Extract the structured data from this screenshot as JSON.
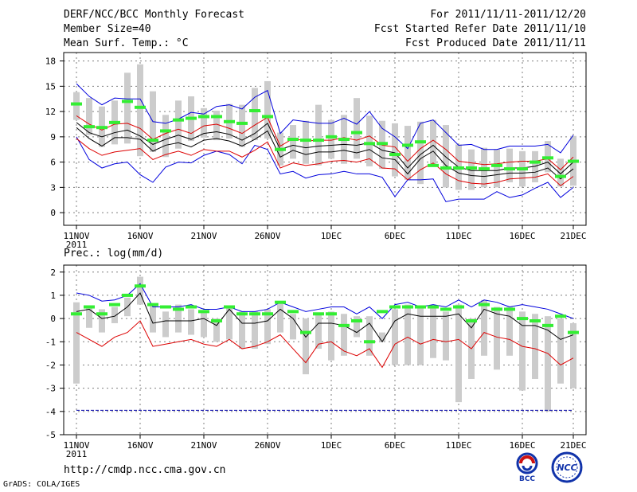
{
  "header": {
    "title": "DERF/NCC/BCC Monthly Forecast",
    "member_size": "Member Size=40",
    "variable_top": "Mean Surf. Temp.: °C",
    "period": "For 2011/11/11-2011/12/20",
    "start_date": "Fcst Started Refer Date 2011/11/10",
    "produced_date": "Fcst Produced Date 2011/11/11"
  },
  "footer": {
    "url": "http://cmdp.ncc.cma.gov.cn",
    "grads": "GrADS: COLA/IGES",
    "logo_bcc": "BCC",
    "logo_ncc": "NCC"
  },
  "colors": {
    "frame": "#000000",
    "grid": "#7f7f7f",
    "box": "#cccccc",
    "green": "#33ee33",
    "max_line": "#0000dd",
    "min_line": "#dd0000",
    "mean_line": "#000000",
    "ref_line": "#0000aa"
  },
  "chart_data": [
    {
      "type": "line",
      "title": "Mean Surf. Temp.: °C",
      "xlabel": "",
      "ylabel": "",
      "ylim": [
        -1.5,
        19
      ],
      "yticks": [
        0,
        3,
        6,
        9,
        12,
        15,
        18
      ],
      "grid": true,
      "day_count": 40,
      "x_ticks": [
        {
          "day": 0,
          "label": "11NOV",
          "sub": "2011"
        },
        {
          "day": 5,
          "label": "16NOV"
        },
        {
          "day": 10,
          "label": "21NOV"
        },
        {
          "day": 15,
          "label": "26NOV"
        },
        {
          "day": 20,
          "label": "1DEC"
        },
        {
          "day": 25,
          "label": "6DEC"
        },
        {
          "day": 30,
          "label": "11DEC"
        },
        {
          "day": 35,
          "label": "16DEC"
        },
        {
          "day": 39,
          "label": "21DEC"
        }
      ],
      "series": [
        {
          "name": "max",
          "values": [
            15.3,
            13.8,
            12.8,
            13.6,
            13.5,
            13.5,
            10.8,
            10.6,
            11.1,
            11.9,
            11.7,
            12.6,
            12.8,
            12.3,
            13.7,
            14.5,
            9.4,
            11.0,
            10.8,
            10.6,
            10.6,
            11.2,
            10.5,
            12.0,
            10.0,
            9.0,
            7.6,
            10.6,
            11.0,
            9.5,
            8.0,
            8.1,
            7.5,
            7.5,
            7.9,
            7.9,
            7.9,
            8.1,
            7.1,
            9.2
          ]
        },
        {
          "name": "upper",
          "values": [
            11.5,
            10.5,
            9.8,
            10.5,
            10.6,
            10.0,
            8.7,
            9.4,
            9.9,
            9.4,
            10.3,
            10.5,
            10.0,
            9.4,
            10.4,
            11.3,
            7.9,
            8.8,
            8.5,
            8.6,
            8.6,
            8.9,
            8.6,
            9.1,
            8.0,
            7.8,
            6.1,
            7.6,
            8.6,
            7.5,
            6.1,
            5.9,
            5.7,
            5.8,
            6.0,
            6.1,
            6.1,
            6.4,
            5.1,
            6.6
          ]
        },
        {
          "name": "mean",
          "values": [
            10.7,
            9.5,
            9.0,
            9.5,
            9.8,
            9.1,
            8.1,
            8.7,
            9.2,
            8.7,
            9.4,
            9.6,
            9.3,
            8.6,
            9.4,
            10.6,
            7.5,
            8.0,
            7.7,
            7.9,
            8.0,
            8.1,
            8.0,
            8.3,
            7.4,
            7.1,
            5.3,
            6.9,
            8.0,
            6.6,
            5.4,
            5.0,
            5.0,
            5.0,
            5.3,
            5.3,
            5.5,
            6.0,
            4.6,
            6.0
          ]
        },
        {
          "name": "lower",
          "values": [
            10.1,
            8.8,
            7.9,
            8.9,
            8.9,
            8.7,
            7.3,
            8.0,
            8.3,
            7.8,
            8.6,
            8.8,
            8.5,
            7.9,
            8.7,
            9.7,
            6.6,
            7.4,
            6.9,
            7.2,
            7.2,
            7.4,
            7.1,
            7.5,
            6.5,
            6.3,
            4.6,
            6.4,
            7.3,
            5.6,
            4.7,
            4.4,
            4.3,
            4.5,
            4.7,
            4.7,
            4.8,
            5.3,
            4.0,
            5.2
          ]
        },
        {
          "name": "low",
          "values": [
            8.8,
            7.6,
            6.8,
            7.2,
            7.4,
            7.6,
            6.3,
            6.9,
            7.3,
            6.8,
            7.5,
            7.3,
            7.3,
            6.6,
            7.4,
            8.4,
            5.3,
            5.9,
            5.6,
            5.8,
            6.1,
            6.2,
            6.0,
            6.4,
            5.3,
            5.2,
            3.9,
            5.1,
            5.9,
            4.6,
            3.8,
            3.5,
            3.4,
            3.6,
            4.0,
            4.1,
            4.2,
            4.6,
            3.2,
            4.3
          ]
        },
        {
          "name": "min",
          "values": [
            9.0,
            6.3,
            5.3,
            5.8,
            6.0,
            4.5,
            3.6,
            5.4,
            6.0,
            5.9,
            6.8,
            7.3,
            6.9,
            5.8,
            8.0,
            7.5,
            4.6,
            4.9,
            4.1,
            4.5,
            4.6,
            4.9,
            4.6,
            4.6,
            4.2,
            1.9,
            3.9,
            3.9,
            4.0,
            1.3,
            1.6,
            1.6,
            1.6,
            2.5,
            1.8,
            2.1,
            2.9,
            3.6,
            1.8,
            3.0
          ]
        }
      ],
      "boxes": {
        "top": [
          14.3,
          13.6,
          12.6,
          13.3,
          16.6,
          17.6,
          14.4,
          11.6,
          13.3,
          13.8,
          12.4,
          12.1,
          12.9,
          12.8,
          14.8,
          15.6,
          9.5,
          10.4,
          10.9,
          12.8,
          11.0,
          11.6,
          13.6,
          11.5,
          10.9,
          10.6,
          10.3,
          10.8,
          11.0,
          10.4,
          8.1,
          7.5,
          7.7,
          7.5,
          7.6,
          7.3,
          7.3,
          8.5,
          6.4,
          9.1
        ],
        "bottom": [
          11.0,
          9.2,
          7.8,
          8.1,
          8.2,
          6.7,
          7.2,
          6.6,
          7.6,
          8.5,
          8.9,
          8.6,
          8.8,
          7.8,
          8.6,
          8.8,
          5.6,
          6.4,
          5.8,
          5.6,
          6.4,
          5.8,
          6.4,
          5.5,
          5.2,
          4.3,
          3.9,
          3.4,
          5.6,
          3.0,
          2.7,
          2.7,
          3.0,
          3.0,
          3.6,
          3.1,
          3.6,
          4.8,
          3.1,
          3.2
        ]
      },
      "green": [
        12.9,
        10.2,
        10.1,
        10.7,
        13.2,
        12.5,
        8.6,
        9.7,
        11.0,
        11.2,
        11.4,
        11.4,
        10.8,
        10.6,
        12.1,
        11.4,
        7.5,
        8.7,
        8.6,
        8.6,
        9.0,
        8.7,
        9.5,
        8.2,
        8.2,
        6.9,
        8.0,
        8.4,
        5.6,
        5.3,
        5.3,
        5.3,
        5.2,
        5.6,
        5.2,
        5.2,
        6.0,
        6.5,
        4.3,
        6.1
      ]
    },
    {
      "type": "line",
      "title": "Prec.: log(mm/d)",
      "xlabel": "",
      "ylabel": "",
      "ylim": [
        -5,
        2.3
      ],
      "yticks": [
        -5,
        -4,
        -3,
        -2,
        -1,
        0,
        1,
        2
      ],
      "grid": true,
      "day_count": 40,
      "x_ticks": [
        {
          "day": 0,
          "label": "11NOV",
          "sub": "2011"
        },
        {
          "day": 5,
          "label": "16NOV"
        },
        {
          "day": 10,
          "label": "21NOV"
        },
        {
          "day": 15,
          "label": "26NOV"
        },
        {
          "day": 20,
          "label": "1DEC"
        },
        {
          "day": 25,
          "label": "6DEC"
        },
        {
          "day": 30,
          "label": "11DEC"
        },
        {
          "day": 35,
          "label": "16DEC"
        },
        {
          "day": 39,
          "label": "21DEC"
        }
      ],
      "reference_line": -3.95,
      "series": [
        {
          "name": "max",
          "values": [
            1.1,
            1.0,
            0.75,
            0.8,
            1.0,
            1.5,
            0.5,
            0.5,
            0.5,
            0.6,
            0.4,
            0.4,
            0.5,
            0.3,
            0.3,
            0.4,
            0.7,
            0.5,
            0.3,
            0.4,
            0.5,
            0.5,
            0.2,
            0.5,
            0.0,
            0.6,
            0.7,
            0.5,
            0.6,
            0.5,
            0.8,
            0.5,
            0.8,
            0.7,
            0.5,
            0.6,
            0.5,
            0.4,
            0.2,
            0.0
          ]
        },
        {
          "name": "mean",
          "values": [
            0.3,
            0.4,
            0.0,
            0.1,
            0.5,
            1.1,
            -0.2,
            -0.1,
            -0.1,
            -0.1,
            0.0,
            -0.3,
            0.4,
            -0.2,
            -0.2,
            -0.1,
            0.4,
            0.0,
            -0.8,
            -0.2,
            -0.2,
            -0.3,
            -0.6,
            -0.2,
            -1.0,
            -0.1,
            0.2,
            0.1,
            0.1,
            0.1,
            0.2,
            -0.4,
            0.4,
            0.2,
            0.1,
            -0.3,
            -0.3,
            -0.5,
            -0.9,
            -0.7
          ]
        },
        {
          "name": "min",
          "values": [
            -0.6,
            -0.9,
            -1.2,
            -0.8,
            -0.6,
            -0.1,
            -1.2,
            -1.1,
            -1.0,
            -0.9,
            -1.1,
            -1.2,
            -0.9,
            -1.3,
            -1.2,
            -1.0,
            -0.7,
            -1.3,
            -1.9,
            -1.1,
            -1.0,
            -1.4,
            -1.6,
            -1.3,
            -2.1,
            -1.1,
            -0.8,
            -1.1,
            -0.9,
            -1.0,
            -0.9,
            -1.3,
            -0.6,
            -0.8,
            -0.9,
            -1.2,
            -1.3,
            -1.5,
            -2.0,
            -1.7
          ]
        }
      ],
      "boxes": {
        "top": [
          0.7,
          0.5,
          0.4,
          0.5,
          0.9,
          1.8,
          0.6,
          0.3,
          0.6,
          0.4,
          0.3,
          0.0,
          0.5,
          0.3,
          0.3,
          0.4,
          0.7,
          0.2,
          0.0,
          0.2,
          0.3,
          0.2,
          0.1,
          0.1,
          -0.6,
          0.4,
          0.6,
          0.5,
          0.5,
          0.3,
          0.6,
          0.0,
          0.8,
          0.5,
          0.5,
          0.3,
          0.2,
          0.1,
          0.0,
          -0.2
        ],
        "bottom": [
          -2.8,
          -0.4,
          -0.6,
          -0.2,
          0.1,
          0.6,
          -0.6,
          -0.8,
          -0.6,
          -0.7,
          -0.8,
          -1.0,
          -0.9,
          -1.3,
          -1.3,
          -1.1,
          -0.6,
          -0.9,
          -2.4,
          -1.3,
          -1.8,
          -1.6,
          -0.8,
          -1.6,
          -1.0,
          -2.0,
          -2.0,
          -2.0,
          -1.7,
          -1.8,
          -3.6,
          -2.6,
          -1.6,
          -2.2,
          -1.6,
          -3.1,
          -2.6,
          -4.0,
          -2.8,
          -3.0
        ]
      },
      "green": [
        0.2,
        0.5,
        0.2,
        0.6,
        1.0,
        1.4,
        0.6,
        0.5,
        0.4,
        0.5,
        0.3,
        -0.1,
        0.5,
        0.2,
        0.2,
        0.2,
        0.7,
        0.3,
        -0.6,
        0.2,
        0.2,
        -0.3,
        -0.1,
        -1.0,
        0.3,
        0.5,
        0.5,
        0.5,
        0.5,
        0.4,
        0.5,
        -0.1,
        0.6,
        0.4,
        0.4,
        0.0,
        -0.1,
        -0.3,
        0.1,
        -0.6
      ]
    }
  ]
}
